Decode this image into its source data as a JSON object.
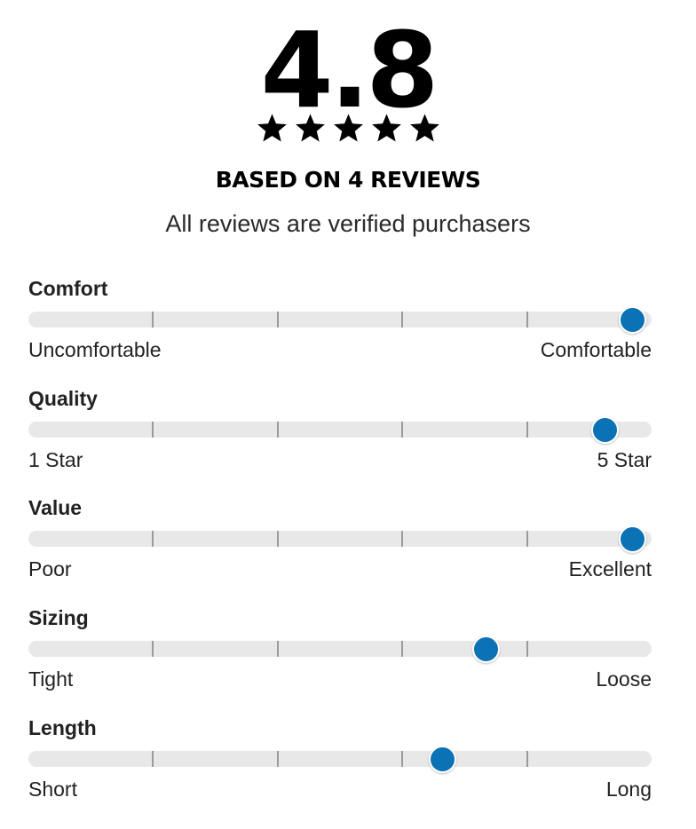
{
  "summary": {
    "rating": "4.8",
    "rating_out_of_5": 4.8,
    "stars_icon": "star-icon",
    "star_count": 5,
    "review_count_text": "BASED ON 4 REVIEWS",
    "verified_note": "All reviews are verified purchasers"
  },
  "colors": {
    "accent": "#0a72b5",
    "track": "#e8e8e8",
    "tick": "#9a9a9a"
  },
  "factors": [
    {
      "title": "Comfort",
      "low_label": "Uncomfortable",
      "high_label": "Comfortable",
      "value_fraction": 0.97
    },
    {
      "title": "Quality",
      "low_label": "1 Star",
      "high_label": "5 Star",
      "value_fraction": 0.925
    },
    {
      "title": "Value",
      "low_label": "Poor",
      "high_label": "Excellent",
      "value_fraction": 0.97
    },
    {
      "title": "Sizing",
      "low_label": "Tight",
      "high_label": "Loose",
      "value_fraction": 0.735
    },
    {
      "title": "Length",
      "low_label": "Short",
      "high_label": "Long",
      "value_fraction": 0.665
    }
  ]
}
